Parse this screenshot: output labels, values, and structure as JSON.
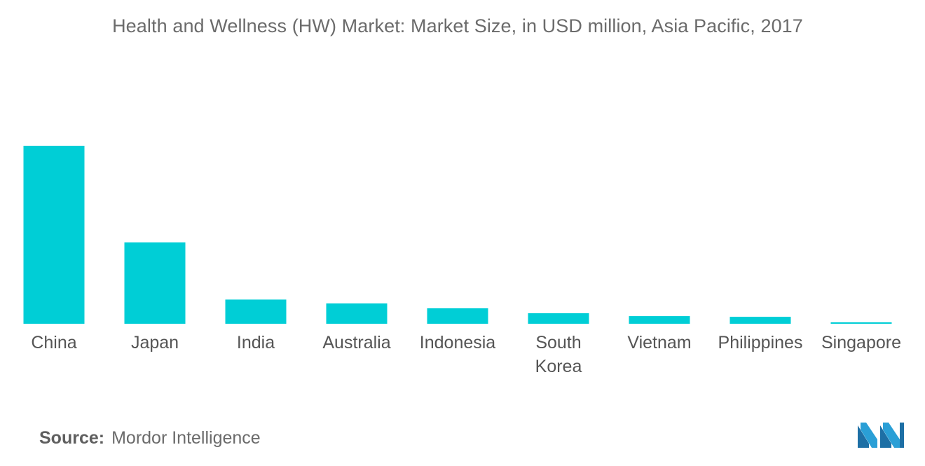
{
  "title": "Health and Wellness (HW) Market: Market Size, in USD million, Asia Pacific, 2017",
  "source": {
    "label": "Source:",
    "text": "Mordor Intelligence"
  },
  "colors": {
    "bar": "#00CED6",
    "label": "#555555"
  },
  "logo": {
    "icon": "mordor-intelligence-logo"
  },
  "chart_data": {
    "type": "bar",
    "title": "Health and Wellness (HW) Market: Market Size, in USD million, Asia Pacific, 2017",
    "xlabel": "",
    "ylabel": "",
    "categories": [
      "China",
      "Japan",
      "India",
      "Australia",
      "Indonesia",
      "South Korea",
      "Vietnam",
      "Philippines",
      "Singapore"
    ],
    "category_label_lines": [
      [
        "China"
      ],
      [
        "Japan"
      ],
      [
        "India"
      ],
      [
        "Australia"
      ],
      [
        "Indonesia"
      ],
      [
        "South",
        "Korea"
      ],
      [
        "Vietnam"
      ],
      [
        "Philippines"
      ],
      [
        "Singapore"
      ]
    ],
    "values": [
      100,
      45.7,
      13.6,
      11.4,
      8.7,
      5.9,
      4.3,
      3.9,
      0.8
    ],
    "ylim": [
      0,
      100
    ],
    "grid": false,
    "legend": "none",
    "axis_values_shown": false
  }
}
